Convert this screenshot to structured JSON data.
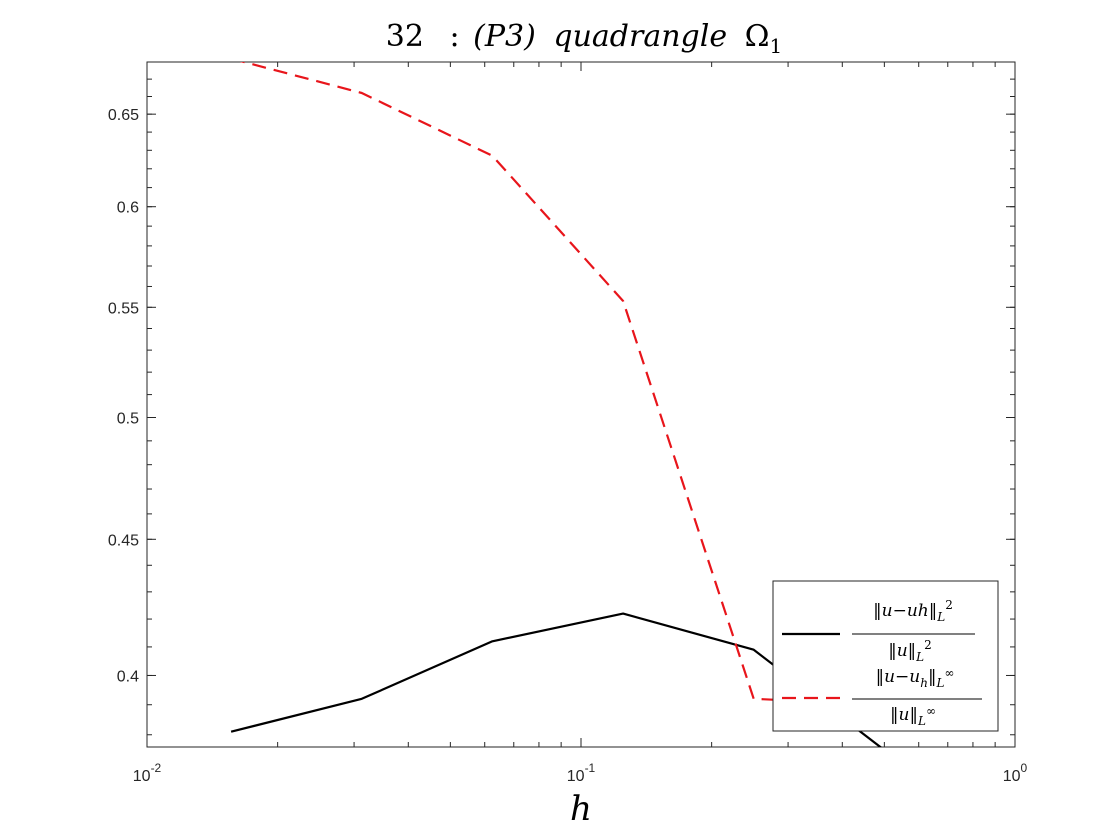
{
  "chart_data": {
    "type": "line",
    "title": {
      "number": "32",
      "separator": ":",
      "method": "(P3)",
      "word": "quadrangle",
      "symbol": "Ω",
      "subscript": "1"
    },
    "xlabel": "h",
    "ylabel": "",
    "xscale": "log",
    "yscale": "log",
    "xlim": [
      0.01,
      1
    ],
    "ylim": [
      0.376,
      0.68
    ],
    "x_ticks": [
      {
        "label": "10",
        "exp": "-2"
      },
      {
        "label": "10",
        "exp": "-1"
      },
      {
        "label": "10",
        "exp": "0"
      }
    ],
    "y_ticks": [
      "0.4",
      "0.45",
      "0.5",
      "0.55",
      "0.6",
      "0.65"
    ],
    "y_tick_values": [
      0.4,
      0.45,
      0.5,
      0.55,
      0.6,
      0.65
    ],
    "x": [
      0.015625,
      0.03125,
      0.0625,
      0.125,
      0.25,
      0.5
    ],
    "series": [
      {
        "name": "‖u−uh‖_{L²} / ‖u‖_{L²}",
        "color": "#000000",
        "style": "solid",
        "values": [
          0.381,
          0.392,
          0.412,
          0.422,
          0.409,
          0.375
        ]
      },
      {
        "name": "‖u−u_h‖_{L∞} / ‖u‖_{L∞}",
        "color": "#e8151b",
        "style": "dashed",
        "values": [
          0.682,
          0.662,
          0.627,
          0.553,
          0.392,
          0.39
        ]
      }
    ],
    "legend": {
      "placement": "bottom-right",
      "entries": [
        {
          "num_a": "‖u−uh‖",
          "num_sub": "L",
          "num_sup": "2",
          "den_a": "‖u‖",
          "den_sub": "L",
          "den_sup": "2"
        },
        {
          "num_a": "‖u−u",
          "num_h": "h",
          "num_b": "‖",
          "num_sub": "L",
          "num_sup": "∞",
          "den_a": "‖u‖",
          "den_sub": "L",
          "den_sup": "∞"
        }
      ]
    },
    "grid": false,
    "minor_ticks": true
  }
}
